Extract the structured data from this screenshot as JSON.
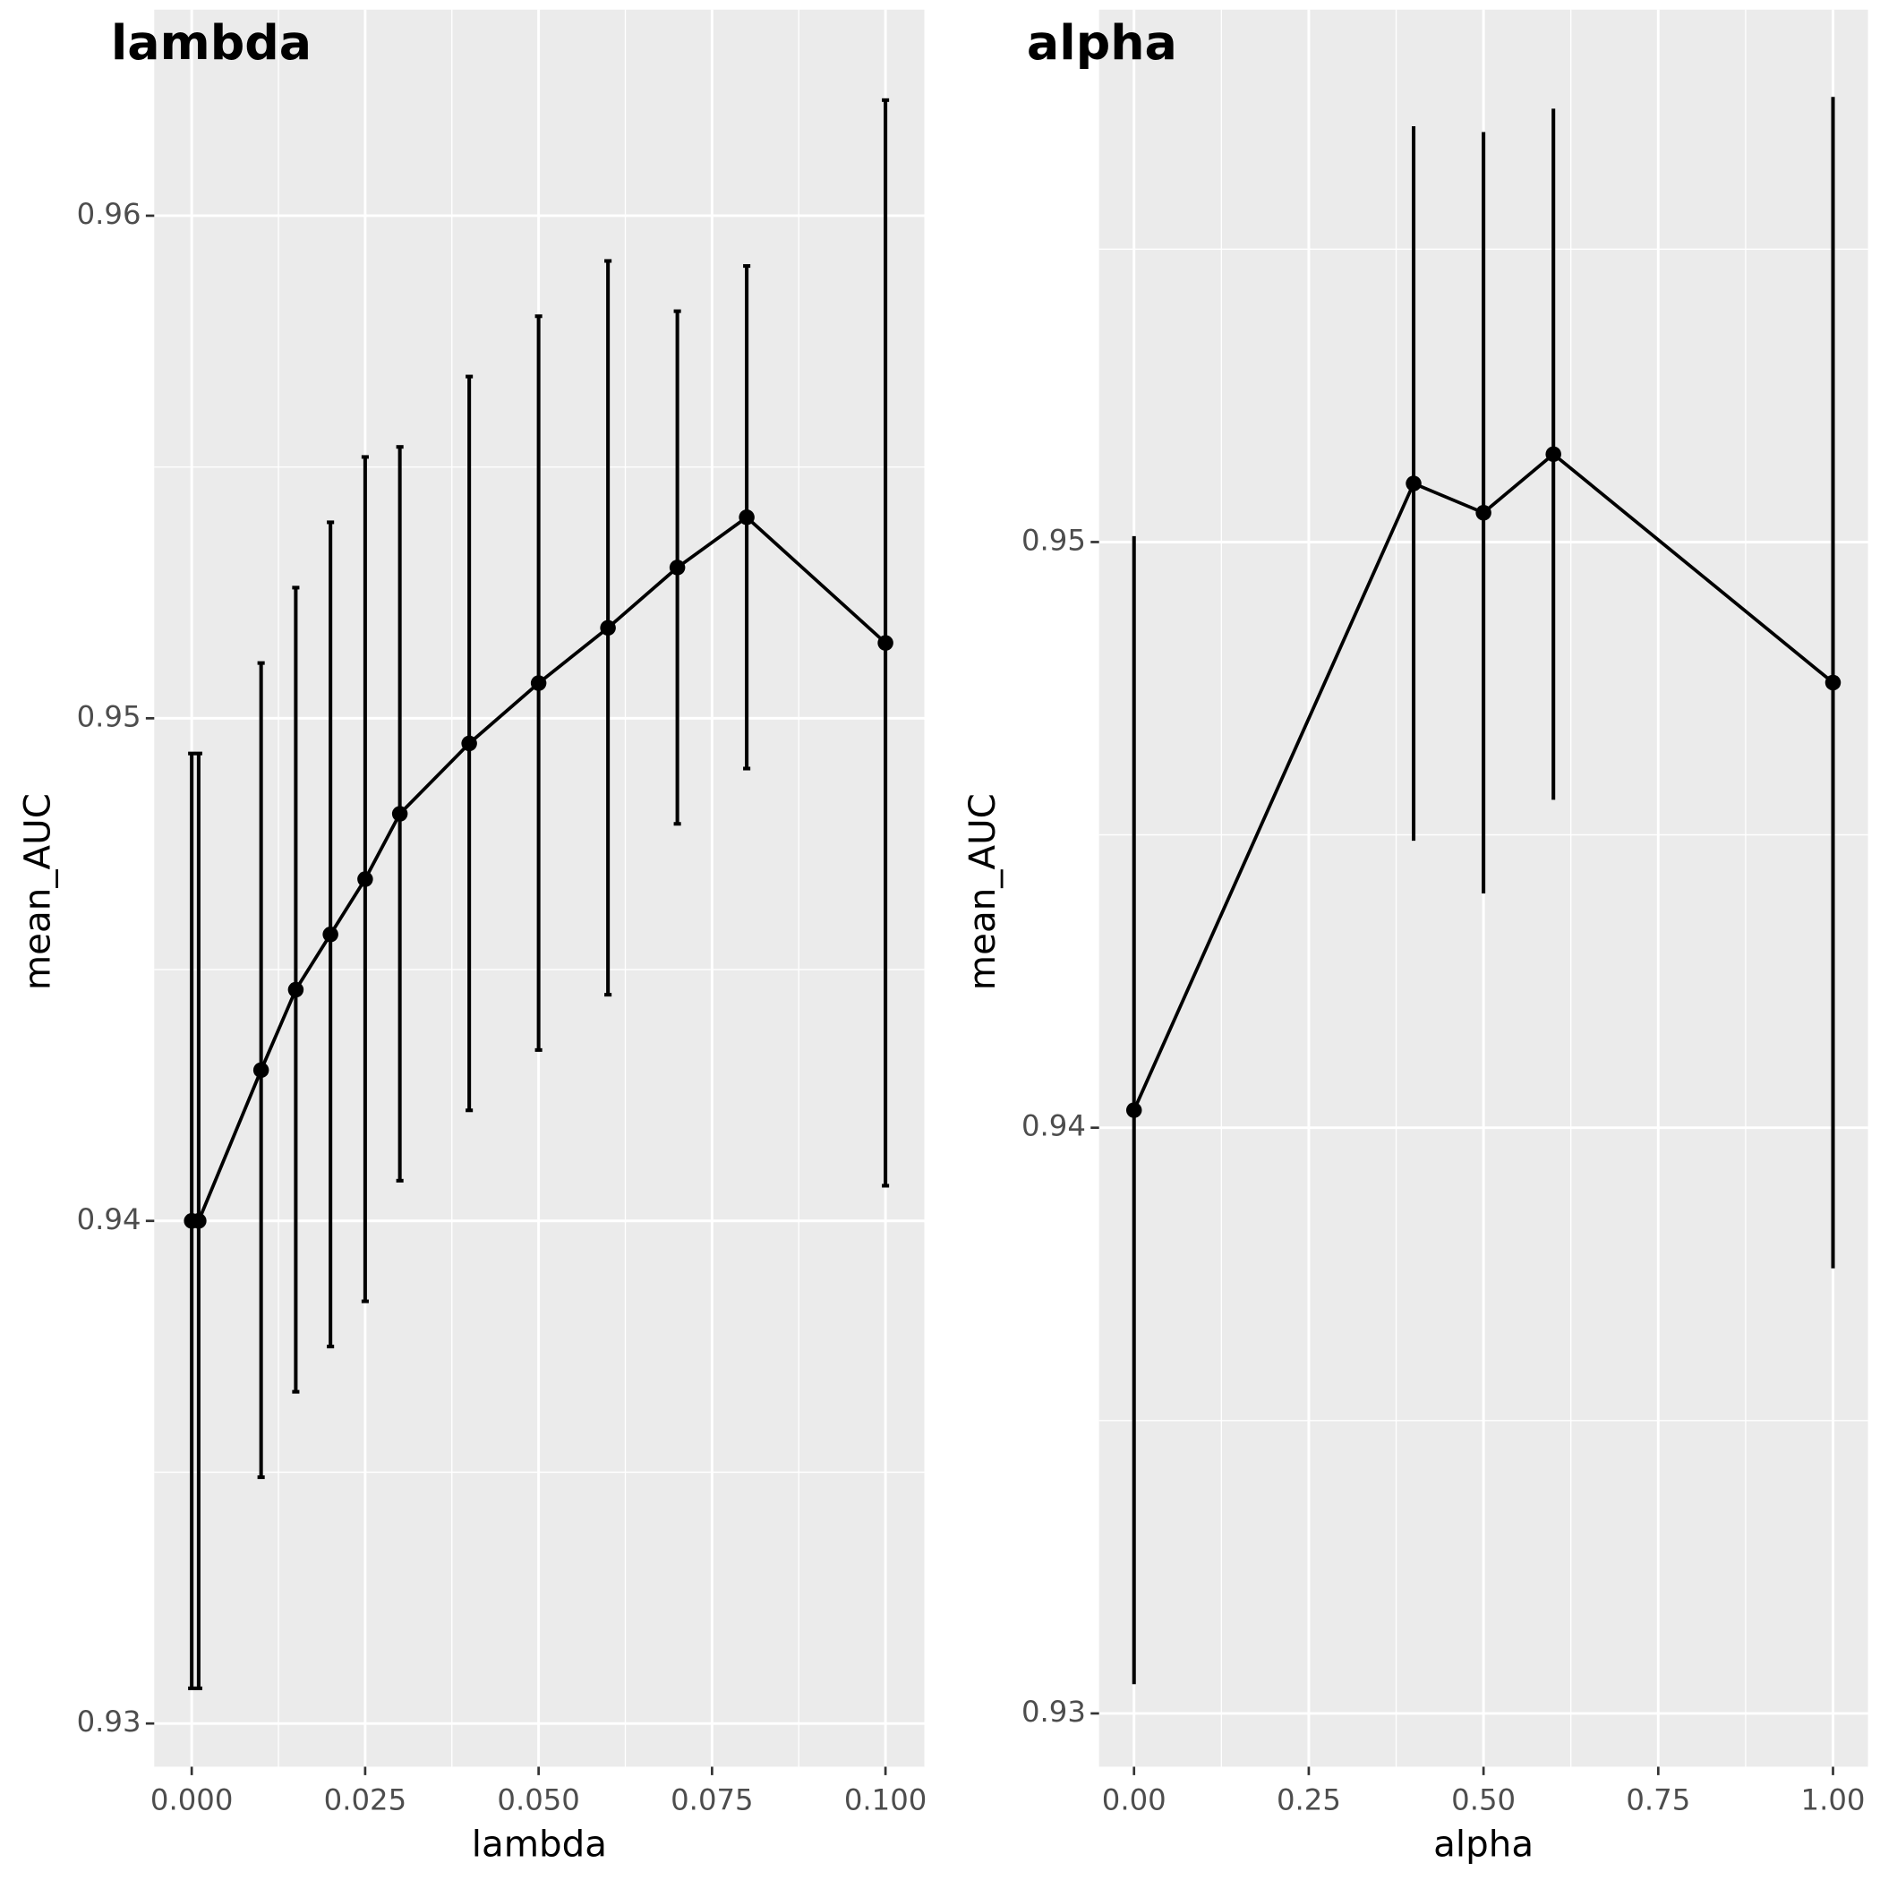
{
  "chart_data": [
    {
      "type": "errorbar-line",
      "title": "lambda",
      "x_label": "lambda",
      "y_label": "mean_AUC",
      "x": [
        0.0,
        0.001,
        0.01,
        0.015,
        0.02,
        0.025,
        0.03,
        0.04,
        0.05,
        0.06,
        0.07,
        0.08,
        0.1
      ],
      "values": [
        0.94,
        0.94,
        0.943,
        0.9446,
        0.9457,
        0.9468,
        0.9481,
        0.9495,
        0.9507,
        0.9518,
        0.953,
        0.954,
        0.9515
      ],
      "errors": [
        0.0093,
        0.0093,
        0.0081,
        0.008,
        0.0082,
        0.0084,
        0.0073,
        0.0073,
        0.0073,
        0.0073,
        0.0051,
        0.005,
        0.0108
      ],
      "color": "#000000",
      "xlim": [
        -0.0054,
        0.1056
      ],
      "ylim": [
        0.92914,
        0.9641
      ],
      "xticks": [
        {
          "value": 0,
          "label": "0.000"
        },
        {
          "value": 0.025,
          "label": "0.025"
        },
        {
          "value": 0.05,
          "label": "0.050"
        },
        {
          "value": 0.075,
          "label": "0.075"
        },
        {
          "value": 0.1,
          "label": "0.100"
        }
      ],
      "yticks": [
        0.93,
        0.94,
        0.95,
        0.96
      ],
      "grid": true
    },
    {
      "type": "errorbar-line",
      "title": "alpha",
      "x_label": "alpha",
      "y_label": "mean_AUC",
      "x": [
        0.0,
        0.4,
        0.5,
        0.6,
        1.0
      ],
      "values": [
        0.9403,
        0.951,
        0.9505,
        0.9515,
        0.9476
      ],
      "errors": [
        0.0098,
        0.0061,
        0.0065,
        0.0059,
        0.01
      ],
      "color": "#000000",
      "xlim": [
        -0.05,
        1.05
      ],
      "ylim": [
        0.92909,
        0.95909
      ],
      "xticks": [
        {
          "value": 0,
          "label": "0.00"
        },
        {
          "value": 0.25,
          "label": "0.25"
        },
        {
          "value": 0.5,
          "label": "0.50"
        },
        {
          "value": 0.75,
          "label": "0.75"
        },
        {
          "value": 1,
          "label": "1.00"
        }
      ],
      "yticks": [
        0.93,
        0.94,
        0.95
      ],
      "grid": true
    }
  ]
}
